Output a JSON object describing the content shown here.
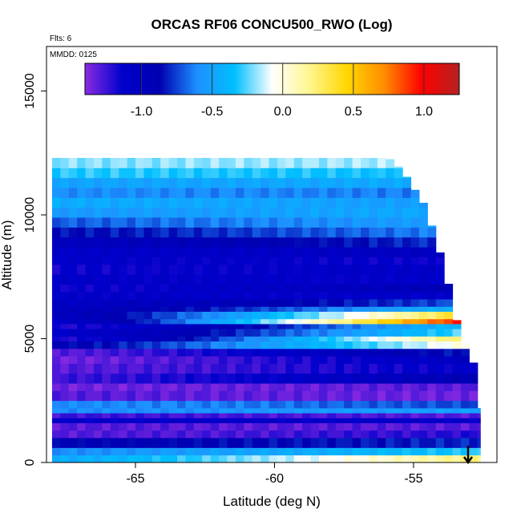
{
  "chart_data": {
    "type": "heatmap",
    "title": "ORCAS RF06 CONCU500_RWO (Log)",
    "flights_label": "Flts: 6",
    "date_label": "MMDD: 0125",
    "xlabel": "Latitude (deg N)",
    "ylabel": "Altitude (m)",
    "xlim": [
      -68.2,
      -52.0
    ],
    "ylim": [
      0,
      16800
    ],
    "x_ticks": [
      -65,
      -60,
      -55
    ],
    "x_tick_labels": [
      "-65",
      "-60",
      "-55"
    ],
    "y_ticks": [
      0,
      5000,
      10000,
      15000
    ],
    "y_tick_labels": [
      "0",
      "5000",
      "10000",
      "15000"
    ],
    "colorbar": {
      "range": [
        -1.4,
        1.25
      ],
      "ticks": [
        -1.0,
        -0.5,
        0.0,
        0.5,
        1.0
      ],
      "tick_labels": [
        "-1.0",
        "-0.5",
        "0.0",
        "0.5",
        "1.0"
      ],
      "colors": [
        "#8a2be2",
        "#0000cd",
        "#0000b0",
        "#1e90ff",
        "#00bfff",
        "#ffffff",
        "#fff68f",
        "#ffd700",
        "#ff8c00",
        "#ff0000",
        "#b22222"
      ]
    },
    "grid": {
      "lat_start": -68.0,
      "lat_end": -52.6,
      "lat_step": 0.3,
      "alt_step": 300
    },
    "top_altitude_by_lat": [
      [
        -68.0,
        12300
      ],
      [
        -55.9,
        12300
      ],
      [
        -55.4,
        11800
      ],
      [
        -55.0,
        11100
      ],
      [
        -54.6,
        10400
      ],
      [
        -54.3,
        9400
      ],
      [
        -54.0,
        8300
      ],
      [
        -53.7,
        7000
      ],
      [
        -53.4,
        5500
      ],
      [
        -53.1,
        4700
      ],
      [
        -52.8,
        3900
      ],
      [
        -52.6,
        2200
      ]
    ],
    "layers": [
      {
        "alt": [
          0,
          300
        ],
        "a": -0.45,
        "b": 0.25
      },
      {
        "alt": [
          300,
          600
        ],
        "a": -0.6,
        "b": -0.3
      },
      {
        "alt": [
          600,
          1000
        ],
        "a": -0.9,
        "b": -0.8
      },
      {
        "alt": [
          1000,
          1300
        ],
        "a": -1.3,
        "b": -1.2
      },
      {
        "alt": [
          1300,
          1600
        ],
        "a": -1.3,
        "b": -1.3
      },
      {
        "alt": [
          1600,
          1800
        ],
        "a": -1.1,
        "b": -1.1
      },
      {
        "alt": [
          1800,
          2000
        ],
        "a": -1.25,
        "b": -1.3
      },
      {
        "alt": [
          2000,
          2200
        ],
        "a": -0.6,
        "b": -0.5
      },
      {
        "alt": [
          2200,
          2500
        ],
        "a": -0.6,
        "b": -0.75
      },
      {
        "alt": [
          2500,
          2900
        ],
        "a": -1.3,
        "b": -1.35
      },
      {
        "alt": [
          2900,
          3200
        ],
        "a": -1.35,
        "b": -1.3
      },
      {
        "alt": [
          3200,
          3600
        ],
        "a": -1.25,
        "b": -0.9
      },
      {
        "alt": [
          3600,
          4000
        ],
        "a": -1.3,
        "b": -1.1
      },
      {
        "alt": [
          4000,
          4300
        ],
        "a": -1.35,
        "b": -1.0
      },
      {
        "alt": [
          4300,
          4600
        ],
        "a": -1.3,
        "b": -0.8
      },
      {
        "alt": [
          4600,
          4900
        ],
        "a": -0.9,
        "b": 0.05
      },
      {
        "alt": [
          4900,
          5100
        ],
        "a": -1.2,
        "b": 0.4
      },
      {
        "alt": [
          5100,
          5400
        ],
        "a": -1.1,
        "b": -0.2
      },
      {
        "alt": [
          5400,
          5600
        ],
        "a": -1.2,
        "b": -0.3
      },
      {
        "alt": [
          5600,
          5800
        ],
        "a": -1.1,
        "b": 1.1
      },
      {
        "alt": [
          5800,
          6100
        ],
        "a": -1.0,
        "b": 0.5
      },
      {
        "alt": [
          6100,
          6300
        ],
        "a": -1.0,
        "b": -0.35
      },
      {
        "alt": [
          6300,
          6600
        ],
        "a": -1.05,
        "b": -0.7
      },
      {
        "alt": [
          6600,
          6900
        ],
        "a": -1.1,
        "b": -1.1
      },
      {
        "alt": [
          6900,
          7200
        ],
        "a": -1.15,
        "b": -0.9
      },
      {
        "alt": [
          7200,
          7600
        ],
        "a": -1.1,
        "b": -1.1
      },
      {
        "alt": [
          7600,
          8000
        ],
        "a": -1.15,
        "b": -1.05
      },
      {
        "alt": [
          8000,
          8300
        ],
        "a": -1.1,
        "b": -1.15
      },
      {
        "alt": [
          8300,
          8700
        ],
        "a": -1.1,
        "b": -1.0
      },
      {
        "alt": [
          8700,
          9100
        ],
        "a": -1.0,
        "b": -0.75
      },
      {
        "alt": [
          9100,
          9500
        ],
        "a": -0.85,
        "b": -0.6
      },
      {
        "alt": [
          9500,
          9900
        ],
        "a": -0.7,
        "b": -0.5
      },
      {
        "alt": [
          9900,
          10300
        ],
        "a": -0.55,
        "b": -0.45
      },
      {
        "alt": [
          10300,
          10700
        ],
        "a": -0.45,
        "b": -0.55
      },
      {
        "alt": [
          10700,
          11100
        ],
        "a": -0.6,
        "b": -0.65
      },
      {
        "alt": [
          11100,
          11500
        ],
        "a": -0.5,
        "b": -0.45
      },
      {
        "alt": [
          11500,
          11900
        ],
        "a": -0.3,
        "b": -0.35
      },
      {
        "alt": [
          11900,
          12300
        ],
        "a": -0.2,
        "b": -0.15
      }
    ],
    "annotation": "down-arrow at -53.1 deg N, near surface"
  }
}
